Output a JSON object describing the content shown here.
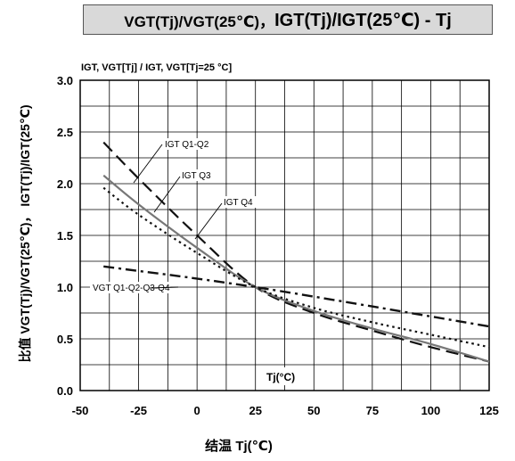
{
  "title_part1": "VGT(Tj)/VGT(25℃)，",
  "title_part2": "IGT(Tj)/IGT(25℃) - Tj",
  "chart_data": {
    "type": "line",
    "xlabel": "结温 Tj(℃)",
    "ylabel": "比值 VGT(Tj)/VGT(25℃)， IGT(Tj)/IGT(25℃)",
    "inner_ylabel": "IGT, VGT[Tj] / IGT, VGT[Tj=25 °C]",
    "inner_xlabel": "Tj(°C)",
    "xlim": [
      -50,
      125
    ],
    "ylim": [
      0,
      3.0
    ],
    "xticks": [
      "-50",
      "-25",
      "0",
      "25",
      "50",
      "75",
      "100",
      "125"
    ],
    "yticks": [
      "0.0",
      "0.5",
      "1.0",
      "1.5",
      "2.0",
      "2.5",
      "3.0"
    ],
    "grid": true,
    "series": [
      {
        "name": "IGT Q1-Q2",
        "style": "dashed",
        "x": [
          -40,
          -25,
          0,
          25,
          50,
          75,
          100,
          125
        ],
        "y": [
          2.4,
          2.05,
          1.5,
          1.0,
          0.75,
          0.58,
          0.42,
          0.28
        ]
      },
      {
        "name": "IGT Q3",
        "style": "solid",
        "x": [
          -40,
          -25,
          0,
          25,
          50,
          75,
          100,
          125
        ],
        "y": [
          2.08,
          1.8,
          1.38,
          1.0,
          0.77,
          0.6,
          0.45,
          0.28
        ]
      },
      {
        "name": "IGT Q4",
        "style": "dotted",
        "x": [
          -40,
          -25,
          0,
          25,
          50,
          75,
          100,
          125
        ],
        "y": [
          1.96,
          1.7,
          1.33,
          1.0,
          0.8,
          0.66,
          0.54,
          0.42
        ]
      },
      {
        "name": "VGT Q1-Q2-Q3-Q4",
        "style": "dashdot",
        "x": [
          -40,
          25,
          125
        ],
        "y": [
          1.2,
          1.0,
          0.62
        ]
      }
    ]
  }
}
